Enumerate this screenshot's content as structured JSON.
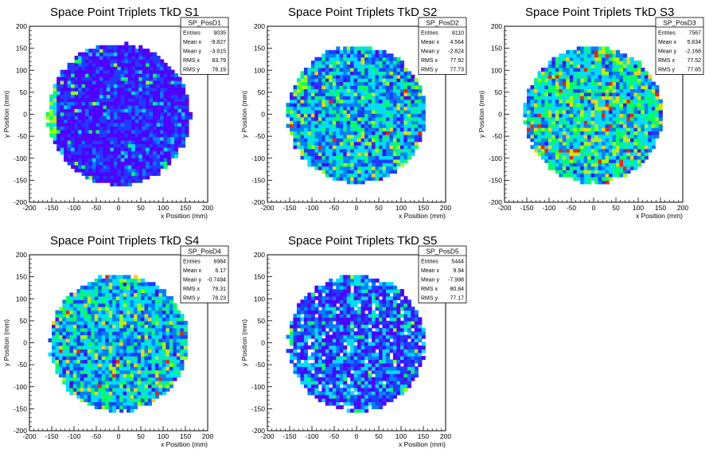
{
  "chart_data": [
    {
      "type": "heatmap",
      "title": "Space Point Triplets TkD S1",
      "xlabel": "x Position (mm)",
      "ylabel": "y Position (mm)",
      "xlim": [
        -200,
        200
      ],
      "ylim": [
        -200,
        200
      ],
      "xticks": [
        -200,
        -150,
        -100,
        -50,
        0,
        50,
        100,
        150,
        200
      ],
      "yticks": [
        -200,
        -150,
        -100,
        -50,
        0,
        50,
        100,
        150,
        200
      ],
      "stats": {
        "name": "SP_PosD1",
        "rows": [
          {
            "label": "Entries",
            "value": "9035"
          },
          {
            "label": "Mean x",
            "value": "-9.827"
          },
          {
            "label": "Mean y",
            "value": "-3.915"
          },
          {
            "label": "RMS x",
            "value": "83.79"
          },
          {
            "label": "RMS y",
            "value": "76.19"
          }
        ]
      },
      "disk_radius_mm": 163,
      "bin_width_mm": 8,
      "level_weights": [
        0.5,
        0.3,
        0.12,
        0.05,
        0.02,
        0.01,
        0,
        0
      ],
      "edge_hot_band": true
    },
    {
      "type": "heatmap",
      "title": "Space Point Triplets TkD S2",
      "xlabel": "x Position (mm)",
      "ylabel": "y Position (mm)",
      "xlim": [
        -200,
        200
      ],
      "ylim": [
        -200,
        200
      ],
      "xticks": [
        -200,
        -150,
        -100,
        -50,
        0,
        50,
        100,
        150,
        200
      ],
      "yticks": [
        -200,
        -150,
        -100,
        -50,
        0,
        50,
        100,
        150,
        200
      ],
      "stats": {
        "name": "SP_PosD2",
        "rows": [
          {
            "label": "Entries",
            "value": "8110"
          },
          {
            "label": "Mean x",
            "value": "4.564"
          },
          {
            "label": "Mean y",
            "value": "-2.824"
          },
          {
            "label": "RMS x",
            "value": "77.92"
          },
          {
            "label": "RMS y",
            "value": "77.73"
          }
        ]
      },
      "disk_radius_mm": 158,
      "bin_width_mm": 8,
      "level_weights": [
        0.06,
        0.18,
        0.22,
        0.28,
        0.16,
        0.06,
        0.03,
        0.01
      ],
      "edge_hot_band": false
    },
    {
      "type": "heatmap",
      "title": "Space Point Triplets TkD S3",
      "xlabel": "x Position (mm)",
      "ylabel": "y Position (mm)",
      "xlim": [
        -200,
        200
      ],
      "ylim": [
        -200,
        200
      ],
      "xticks": [
        -200,
        -150,
        -100,
        -50,
        0,
        50,
        100,
        150,
        200
      ],
      "yticks": [
        -200,
        -150,
        -100,
        -50,
        0,
        50,
        100,
        150,
        200
      ],
      "stats": {
        "name": "SP_PosD3",
        "rows": [
          {
            "label": "Entries",
            "value": "7567"
          },
          {
            "label": "Mean x",
            "value": "5.834"
          },
          {
            "label": "Mean y",
            "value": "-2.168"
          },
          {
            "label": "RMS x",
            "value": "77.52"
          },
          {
            "label": "RMS y",
            "value": "77.65"
          }
        ]
      },
      "disk_radius_mm": 158,
      "bin_width_mm": 8,
      "level_weights": [
        0.02,
        0.08,
        0.18,
        0.32,
        0.22,
        0.1,
        0.05,
        0.03
      ],
      "edge_hot_band": false
    },
    {
      "type": "heatmap",
      "title": "Space Point Triplets TkD S4",
      "xlabel": "x Position (mm)",
      "ylabel": "y Position (mm)",
      "xlim": [
        -200,
        200
      ],
      "ylim": [
        -200,
        200
      ],
      "xticks": [
        -200,
        -150,
        -100,
        -50,
        0,
        50,
        100,
        150,
        200
      ],
      "yticks": [
        -200,
        -150,
        -100,
        -50,
        0,
        50,
        100,
        150,
        200
      ],
      "stats": {
        "name": "SP_PosD4",
        "rows": [
          {
            "label": "Entries",
            "value": "6984"
          },
          {
            "label": "Mean x",
            "value": "6.17"
          },
          {
            "label": "Mean y",
            "value": "-0.7494"
          },
          {
            "label": "RMS x",
            "value": "79.31"
          },
          {
            "label": "RMS y",
            "value": "78.23"
          }
        ]
      },
      "disk_radius_mm": 158,
      "bin_width_mm": 8,
      "level_weights": [
        0.03,
        0.12,
        0.25,
        0.32,
        0.18,
        0.06,
        0.03,
        0.01
      ],
      "edge_hot_band": false
    },
    {
      "type": "heatmap",
      "title": "Space Point Triplets TkD S5",
      "xlabel": "x Position (mm)",
      "ylabel": "y Position (mm)",
      "xlim": [
        -200,
        200
      ],
      "ylim": [
        -200,
        200
      ],
      "xticks": [
        -200,
        -150,
        -100,
        -50,
        0,
        50,
        100,
        150,
        200
      ],
      "yticks": [
        -200,
        -150,
        -100,
        -50,
        0,
        50,
        100,
        150,
        200
      ],
      "stats": {
        "name": "SP_PosD5",
        "rows": [
          {
            "label": "Entries",
            "value": "5444"
          },
          {
            "label": "Mean x",
            "value": "9.94"
          },
          {
            "label": "Mean y",
            "value": "-7.998"
          },
          {
            "label": "RMS x",
            "value": "80.84"
          },
          {
            "label": "RMS y",
            "value": "77.17"
          }
        ]
      },
      "disk_radius_mm": 158,
      "bin_width_mm": 8,
      "level_weights": [
        0.28,
        0.22,
        0.22,
        0.22,
        0.05,
        0.01,
        0,
        0
      ],
      "edge_hot_band": false,
      "empty_fraction": 0.08
    }
  ],
  "palette": [
    "#5000ff",
    "#1e3cff",
    "#0080ff",
    "#00dcff",
    "#00ff64",
    "#a0ff00",
    "#ffd200",
    "#ff1e00"
  ]
}
